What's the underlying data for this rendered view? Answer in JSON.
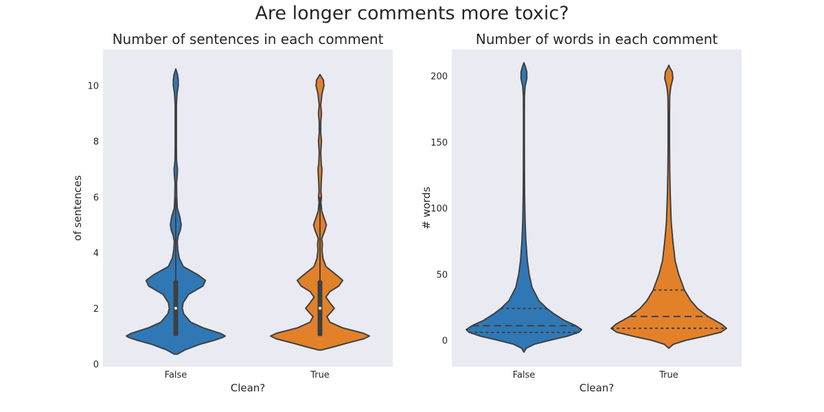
{
  "suptitle": "Are longer comments more toxic?",
  "colors": {
    "False": "#2f78b5",
    "True": "#e3812b",
    "outline": "#3f3f3f",
    "axes_bg": "#eaeaf2"
  },
  "chart_data": [
    {
      "type": "violin",
      "title": "Number of sentences in each comment",
      "xlabel": "Clean?",
      "ylabel": "of sentences",
      "categories": [
        "False",
        "True"
      ],
      "ylim": [
        -0.1,
        11.3
      ],
      "yticks": [
        0,
        2,
        4,
        6,
        8,
        10
      ],
      "grid": false,
      "inner": "box",
      "violins": [
        {
          "category": "False",
          "color": "#2f78b5",
          "box": {
            "q1": 1,
            "median": 2,
            "q3": 3,
            "whisker_low": 1,
            "whisker_high": 6
          },
          "profile": [
            [
              0.35,
              0.03
            ],
            [
              0.5,
              0.18
            ],
            [
              0.7,
              0.48
            ],
            [
              0.85,
              0.78
            ],
            [
              0.95,
              0.95
            ],
            [
              1.0,
              1.0
            ],
            [
              1.1,
              0.9
            ],
            [
              1.3,
              0.55
            ],
            [
              1.5,
              0.3
            ],
            [
              1.8,
              0.16
            ],
            [
              2.0,
              0.13
            ],
            [
              2.2,
              0.15
            ],
            [
              2.5,
              0.26
            ],
            [
              2.8,
              0.55
            ],
            [
              3.0,
              0.6
            ],
            [
              3.2,
              0.45
            ],
            [
              3.5,
              0.15
            ],
            [
              3.8,
              0.07
            ],
            [
              4.1,
              0.04
            ],
            [
              4.4,
              0.03
            ],
            [
              4.6,
              0.05
            ],
            [
              4.8,
              0.09
            ],
            [
              5.0,
              0.11
            ],
            [
              5.3,
              0.08
            ],
            [
              5.6,
              0.03
            ],
            [
              6.0,
              0.02
            ],
            [
              6.5,
              0.015
            ],
            [
              6.8,
              0.03
            ],
            [
              7.0,
              0.035
            ],
            [
              7.3,
              0.015
            ],
            [
              7.8,
              0.012
            ],
            [
              8.5,
              0.012
            ],
            [
              9.3,
              0.012
            ],
            [
              9.7,
              0.025
            ],
            [
              10.0,
              0.05
            ],
            [
              10.2,
              0.05
            ],
            [
              10.4,
              0.035
            ],
            [
              10.6,
              0.0
            ]
          ]
        },
        {
          "category": "True",
          "color": "#e3812b",
          "box": {
            "q1": 1,
            "median": 2,
            "q3": 3,
            "whisker_low": 1,
            "whisker_high": 6
          },
          "profile": [
            [
              0.5,
              0.03
            ],
            [
              0.6,
              0.25
            ],
            [
              0.75,
              0.55
            ],
            [
              0.9,
              0.88
            ],
            [
              1.0,
              1.0
            ],
            [
              1.1,
              0.88
            ],
            [
              1.3,
              0.45
            ],
            [
              1.5,
              0.2
            ],
            [
              1.7,
              0.14
            ],
            [
              1.85,
              0.22
            ],
            [
              2.0,
              0.29
            ],
            [
              2.15,
              0.22
            ],
            [
              2.4,
              0.12
            ],
            [
              2.6,
              0.2
            ],
            [
              2.8,
              0.38
            ],
            [
              3.0,
              0.46
            ],
            [
              3.2,
              0.33
            ],
            [
              3.5,
              0.12
            ],
            [
              3.8,
              0.06
            ],
            [
              4.1,
              0.04
            ],
            [
              4.3,
              0.05
            ],
            [
              4.5,
              0.035
            ],
            [
              4.8,
              0.1
            ],
            [
              5.0,
              0.13
            ],
            [
              5.2,
              0.09
            ],
            [
              5.5,
              0.035
            ],
            [
              5.8,
              0.02
            ],
            [
              6.0,
              0.03
            ],
            [
              6.2,
              0.02
            ],
            [
              6.5,
              0.025
            ],
            [
              7.0,
              0.04
            ],
            [
              7.2,
              0.025
            ],
            [
              7.6,
              0.015
            ],
            [
              8.0,
              0.03
            ],
            [
              8.3,
              0.015
            ],
            [
              8.7,
              0.015
            ],
            [
              9.0,
              0.03
            ],
            [
              9.3,
              0.015
            ],
            [
              9.7,
              0.04
            ],
            [
              10.0,
              0.08
            ],
            [
              10.2,
              0.07
            ],
            [
              10.4,
              0.0
            ]
          ]
        }
      ]
    },
    {
      "type": "violin",
      "title": "Number of words in each comment",
      "xlabel": "Clean?",
      "ylabel": "# words",
      "categories": [
        "False",
        "True"
      ],
      "ylim": [
        -20,
        220
      ],
      "yticks": [
        0,
        50,
        100,
        150,
        200
      ],
      "grid": false,
      "inner": "quartile",
      "violins": [
        {
          "category": "False",
          "color": "#2f78b5",
          "quartiles": [
            6,
            11,
            24
          ],
          "profile": [
            [
              -9,
              0.0
            ],
            [
              -6,
              0.04
            ],
            [
              -3,
              0.18
            ],
            [
              0,
              0.45
            ],
            [
              3,
              0.75
            ],
            [
              6,
              0.95
            ],
            [
              8,
              1.0
            ],
            [
              11,
              0.9
            ],
            [
              15,
              0.7
            ],
            [
              20,
              0.52
            ],
            [
              24,
              0.4
            ],
            [
              30,
              0.26
            ],
            [
              40,
              0.14
            ],
            [
              50,
              0.09
            ],
            [
              60,
              0.06
            ],
            [
              75,
              0.035
            ],
            [
              90,
              0.02
            ],
            [
              110,
              0.012
            ],
            [
              130,
              0.01
            ],
            [
              150,
              0.008
            ],
            [
              170,
              0.008
            ],
            [
              185,
              0.01
            ],
            [
              192,
              0.02
            ],
            [
              198,
              0.05
            ],
            [
              203,
              0.05
            ],
            [
              207,
              0.025
            ],
            [
              210,
              0.0
            ]
          ]
        },
        {
          "category": "True",
          "color": "#e3812b",
          "quartiles": [
            9,
            18,
            38
          ],
          "profile": [
            [
              -6,
              0.0
            ],
            [
              -3,
              0.08
            ],
            [
              0,
              0.3
            ],
            [
              3,
              0.62
            ],
            [
              6,
              0.9
            ],
            [
              9,
              1.0
            ],
            [
              12,
              0.92
            ],
            [
              18,
              0.68
            ],
            [
              24,
              0.5
            ],
            [
              30,
              0.38
            ],
            [
              38,
              0.27
            ],
            [
              50,
              0.17
            ],
            [
              60,
              0.11
            ],
            [
              75,
              0.07
            ],
            [
              90,
              0.04
            ],
            [
              110,
              0.025
            ],
            [
              130,
              0.015
            ],
            [
              150,
              0.012
            ],
            [
              170,
              0.012
            ],
            [
              185,
              0.015
            ],
            [
              192,
              0.035
            ],
            [
              198,
              0.07
            ],
            [
              203,
              0.06
            ],
            [
              206,
              0.02
            ],
            [
              208,
              0.0
            ]
          ]
        }
      ]
    }
  ]
}
